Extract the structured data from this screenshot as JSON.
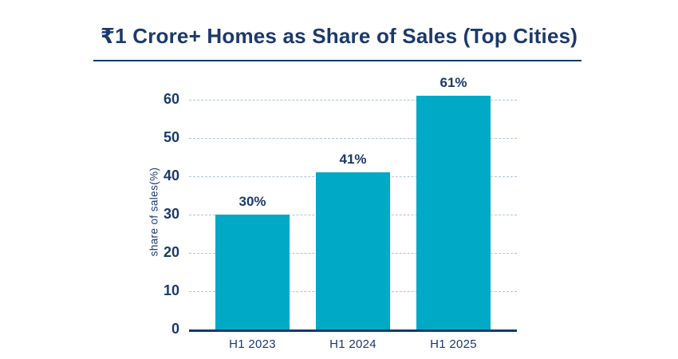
{
  "page": {
    "background_color": "#ffffff"
  },
  "title": {
    "text": "₹1 Crore+ Homes as Share of Sales (Top Cities)",
    "color": "#1b3a6b",
    "underline_color": "#1b3a6b"
  },
  "colors": {
    "bar_fill": "#00a9c5",
    "text_navy": "#1b3a6b",
    "axis_line": "#123a6d",
    "gridline": "#b0c4da"
  },
  "chart_data": {
    "type": "bar",
    "title": "₹1 Crore+ Homes as Share of Sales (Top Cities)",
    "categories": [
      "H1 2023",
      "H1 2024",
      "H1 2025"
    ],
    "values": [
      30,
      41,
      61
    ],
    "data_labels": [
      "30%",
      "41%",
      "61%"
    ],
    "xlabel": "",
    "ylabel": "share of sales(%)",
    "ylim": [
      0,
      60
    ],
    "yticks": [
      0,
      10,
      20,
      30,
      40,
      50,
      60
    ],
    "grid": "horizontal-dashed",
    "legend_position": "none",
    "bar_color": "#00a9c5"
  }
}
